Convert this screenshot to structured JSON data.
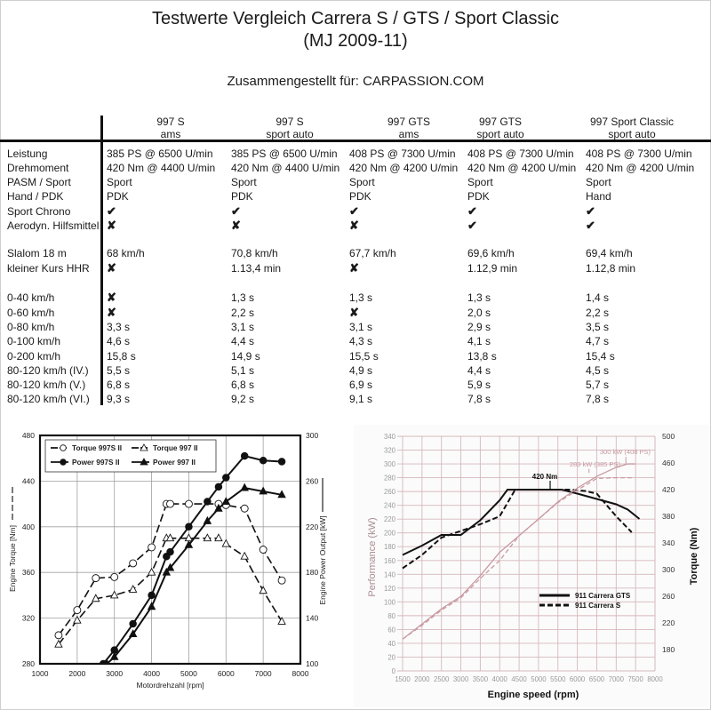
{
  "header": {
    "title": "Testwerte Vergleich Carrera S / GTS / Sport Classic",
    "subtitle": "(MJ 2009-11)",
    "compiled_for": "Zusammengestellt für: CARPASSION.COM"
  },
  "table": {
    "columns": [
      {
        "model": "997 S",
        "source": "ams"
      },
      {
        "model": "997 S",
        "source": "sport auto"
      },
      {
        "model": "997 GTS",
        "source": "ams"
      },
      {
        "model": "997 GTS",
        "source": "sport auto"
      },
      {
        "model": "997 Sport Classic",
        "source": "sport auto"
      }
    ],
    "rows": [
      {
        "label": "Leistung",
        "values": [
          "385 PS @ 6500 U/min",
          "385 PS @ 6500 U/min",
          "408 PS @ 7300 U/min",
          "408 PS @ 7300 U/min",
          "408 PS @ 7300 U/min"
        ]
      },
      {
        "label": "Drehmoment",
        "values": [
          "420 Nm  @ 4400 U/min",
          "420 Nm  @ 4400 U/min",
          "420 Nm @ 4200 U/min",
          "420 Nm @ 4200 U/min",
          "420 Nm @ 4200 U/min"
        ]
      },
      {
        "label": "PASM / Sport",
        "values": [
          "Sport",
          "Sport",
          "Sport",
          "Sport",
          "Sport"
        ]
      },
      {
        "label": "Hand / PDK",
        "values": [
          "PDK",
          "PDK",
          "PDK",
          "PDK",
          "Hand"
        ]
      },
      {
        "label": "Sport Chrono",
        "values": [
          "✔",
          "✔",
          "✔",
          "✔",
          "✔"
        ]
      },
      {
        "label": "Aerodyn. Hilfsmittel",
        "values": [
          "✘",
          "✘",
          "✘",
          "✔",
          "✔"
        ]
      },
      {
        "label": "Slalom 18 m",
        "values": [
          "68 km/h",
          "70,8 km/h",
          "67,7 km/h",
          "69,6 km/h",
          "69,4 km/h"
        ]
      },
      {
        "label": "kleiner Kurs HHR",
        "values": [
          "✘",
          "1.13,4 min",
          "✘",
          "1.12,9 min",
          "1.12,8 min"
        ]
      },
      {
        "label": "0-40 km/h",
        "values": [
          "✘",
          "1,3 s",
          "1,3 s",
          "1,3 s",
          "1,4 s"
        ]
      },
      {
        "label": "0-60 km/h",
        "values": [
          "✘",
          "2,2 s",
          "✘",
          "2,0 s",
          "2,2 s"
        ]
      },
      {
        "label": "0-80 km/h",
        "values": [
          "3,3 s",
          "3,1 s",
          "3,1 s",
          "2,9 s",
          "3,5 s"
        ]
      },
      {
        "label": "0-100 km/h",
        "values": [
          "4,6 s",
          "4,4 s",
          "4,3 s",
          "4,1 s",
          "4,7 s"
        ]
      },
      {
        "label": "0-200 km/h",
        "values": [
          "15,8 s",
          "14,9 s",
          "15,5 s",
          "13,8 s",
          "15,4 s"
        ]
      },
      {
        "label": "80-120 km/h (IV.)",
        "values": [
          "5,5 s",
          "5,1 s",
          "4,9 s",
          "4,4 s",
          "4,5 s"
        ]
      },
      {
        "label": "80-120 km/h (V.)",
        "values": [
          "6,8 s",
          "6,8 s",
          "6,9 s",
          "5,9 s",
          "5,7 s"
        ]
      },
      {
        "label": "80-120 km/h (VI.)",
        "values": [
          "9,3 s",
          "9,2 s",
          "9,1 s",
          "7,8 s",
          "7,8 s"
        ]
      }
    ]
  },
  "chart_data": [
    {
      "type": "line",
      "title": "",
      "xlabel": "Motordrehzahl  [rpm]",
      "ylabel": "Engine Torque  [Nm]",
      "y2label": "Engine Power Output  [kW]",
      "xlim": [
        1000,
        8000
      ],
      "ylim": [
        280,
        480
      ],
      "y2lim": [
        100,
        300
      ],
      "xticks": [
        "1000",
        "2000",
        "3000",
        "4000",
        "5000",
        "6000",
        "7000",
        "8000"
      ],
      "yticks": [
        "280",
        "320",
        "360",
        "400",
        "440",
        "480"
      ],
      "y2ticks": [
        "100",
        "140",
        "180",
        "220",
        "260",
        "300"
      ],
      "grid": true,
      "legend": "top-left",
      "series": [
        {
          "name": "Torque 997S II",
          "axis": "left",
          "style": "dashed-open-circle",
          "x": [
            1500,
            2000,
            2500,
            3000,
            3500,
            4000,
            4400,
            4500,
            5000,
            5800,
            6000,
            6500,
            7000,
            7500
          ],
          "y": [
            305,
            327,
            355,
            356,
            368,
            382,
            420,
            420,
            420,
            420,
            419,
            416,
            380,
            353
          ]
        },
        {
          "name": "Torque 997 II",
          "axis": "left",
          "style": "dashed-open-triangle",
          "x": [
            1500,
            2000,
            2500,
            3000,
            3500,
            4000,
            4400,
            4500,
            5000,
            5500,
            5800,
            6000,
            6500,
            7000,
            7500
          ],
          "y": [
            297,
            318,
            337,
            340,
            345,
            360,
            390,
            390,
            390,
            390,
            390,
            385,
            374,
            344,
            317
          ]
        },
        {
          "name": "Power 997S II",
          "axis": "right",
          "style": "solid-filled-circle",
          "x": [
            2700,
            3000,
            3500,
            4000,
            4400,
            4500,
            5000,
            5500,
            5800,
            6000,
            6500,
            7000,
            7500
          ],
          "y": [
            100,
            112,
            135,
            160,
            194,
            198,
            220,
            242,
            255,
            263,
            282,
            278,
            277
          ]
        },
        {
          "name": "Power 997 II",
          "axis": "right",
          "style": "solid-filled-triangle",
          "x": [
            2800,
            3000,
            3500,
            4000,
            4400,
            4500,
            5000,
            5500,
            5800,
            6000,
            6500,
            7000,
            7500
          ],
          "y": [
            100,
            106,
            126,
            150,
            180,
            184,
            204,
            225,
            236,
            242,
            254,
            251,
            248
          ]
        }
      ]
    },
    {
      "type": "line",
      "title": "",
      "xlabel": "Engine speed  (rpm)",
      "ylabel": "Performance (kW)",
      "y2label": "Torque (Nm)",
      "xlim": [
        1500,
        8000
      ],
      "ylim": [
        0,
        340
      ],
      "y2lim": [
        140,
        500
      ],
      "xticks": [
        "1500",
        "2000",
        "2500",
        "3000",
        "3500",
        "4000",
        "4500",
        "5000",
        "5500",
        "6000",
        "6500",
        "7000",
        "7500",
        "8000"
      ],
      "yticks": [
        "0",
        "20",
        "40",
        "60",
        "80",
        "100",
        "120",
        "140",
        "160",
        "180",
        "200",
        "220",
        "240",
        "260",
        "280",
        "300",
        "320",
        "340"
      ],
      "y2ticks": [
        "180",
        "220",
        "260",
        "300",
        "340",
        "380",
        "420",
        "460",
        "500"
      ],
      "grid": true,
      "legend": "center-right",
      "annotations": [
        "420 Nm",
        "300 kW (408 PS)",
        "283 kW (385 PS)"
      ],
      "series": [
        {
          "name": "911 Carrera GTS",
          "quantity": "torque",
          "axis": "right",
          "style": "solid-black",
          "x": [
            1500,
            2000,
            2500,
            3000,
            3500,
            4000,
            4200,
            5000,
            5600,
            6000,
            6500,
            7000,
            7300,
            7600
          ],
          "y": [
            322,
            336,
            352,
            352,
            374,
            404,
            420,
            420,
            420,
            414,
            406,
            398,
            390,
            376
          ]
        },
        {
          "name": "911 Carrera S",
          "quantity": "torque",
          "axis": "right",
          "style": "dashed-black",
          "x": [
            1500,
            2000,
            2500,
            3000,
            3500,
            4000,
            4400,
            5000,
            5800,
            6200,
            6500,
            7000,
            7400
          ],
          "y": [
            302,
            322,
            348,
            358,
            368,
            380,
            420,
            420,
            420,
            418,
            414,
            380,
            356
          ]
        },
        {
          "name": "911 Carrera GTS",
          "quantity": "power",
          "axis": "left",
          "style": "solid-pink",
          "x": [
            1500,
            2000,
            2500,
            3000,
            3500,
            4000,
            4500,
            5000,
            5500,
            6000,
            6500,
            7000,
            7300,
            7500
          ],
          "y": [
            46,
            68,
            90,
            108,
            138,
            172,
            196,
            220,
            245,
            265,
            282,
            295,
            300,
            300
          ]
        },
        {
          "name": "911 Carrera S",
          "quantity": "power",
          "axis": "left",
          "style": "dashed-pink",
          "x": [
            1500,
            2000,
            2500,
            3000,
            3500,
            4000,
            4500,
            5000,
            5500,
            6000,
            6500,
            7000,
            7400
          ],
          "y": [
            46,
            66,
            88,
            106,
            134,
            160,
            196,
            220,
            244,
            262,
            279,
            280,
            280
          ]
        }
      ]
    }
  ],
  "colors": {
    "text": "#1a1a1a",
    "grid_left": "#9a9a9a",
    "grid_right": "#d6b8bd",
    "power_pink": "#c89aa1",
    "axis_right_text": "#a98d91"
  }
}
